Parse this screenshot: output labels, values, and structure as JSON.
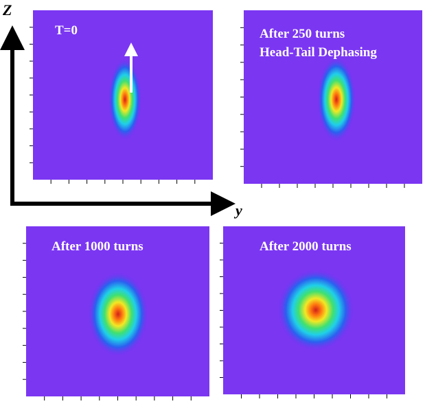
{
  "axes": {
    "vertical_label": "Z",
    "horizontal_label": "y"
  },
  "panels": [
    {
      "label": "T=0"
    },
    {
      "label": "After 250 turns",
      "sublabel": "Head-Tail Dephasing"
    },
    {
      "label": "After 1000 turns"
    },
    {
      "label": "After 2000 turns"
    }
  ]
}
